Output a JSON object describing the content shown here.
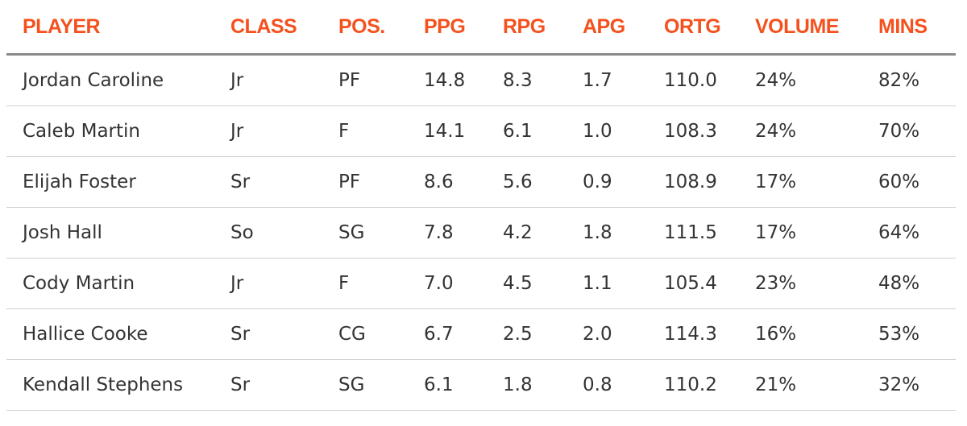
{
  "colors": {
    "header_text": "#f4511e",
    "body_text": "#333333",
    "header_rule": "#8a8a8a",
    "row_rule": "#cfcfcf"
  },
  "chart_data": {
    "type": "table",
    "columns": [
      "PLAYER",
      "CLASS",
      "POS.",
      "PPG",
      "RPG",
      "APG",
      "ORTG",
      "VOLUME",
      "MINS"
    ],
    "rows": [
      [
        "Jordan Caroline",
        "Jr",
        "PF",
        "14.8",
        "8.3",
        "1.7",
        "110.0",
        "24%",
        "82%"
      ],
      [
        "Caleb Martin",
        "Jr",
        "F",
        "14.1",
        "6.1",
        "1.0",
        "108.3",
        "24%",
        "70%"
      ],
      [
        "Elijah Foster",
        "Sr",
        "PF",
        "8.6",
        "5.6",
        "0.9",
        "108.9",
        "17%",
        "60%"
      ],
      [
        "Josh Hall",
        "So",
        "SG",
        "7.8",
        "4.2",
        "1.8",
        "111.5",
        "17%",
        "64%"
      ],
      [
        "Cody Martin",
        "Jr",
        "F",
        "7.0",
        "4.5",
        "1.1",
        "105.4",
        "23%",
        "48%"
      ],
      [
        "Hallice Cooke",
        "Sr",
        "CG",
        "6.7",
        "2.5",
        "2.0",
        "114.3",
        "16%",
        "53%"
      ],
      [
        "Kendall Stephens",
        "Sr",
        "SG",
        "6.1",
        "1.8",
        "0.8",
        "110.2",
        "21%",
        "32%"
      ]
    ]
  }
}
